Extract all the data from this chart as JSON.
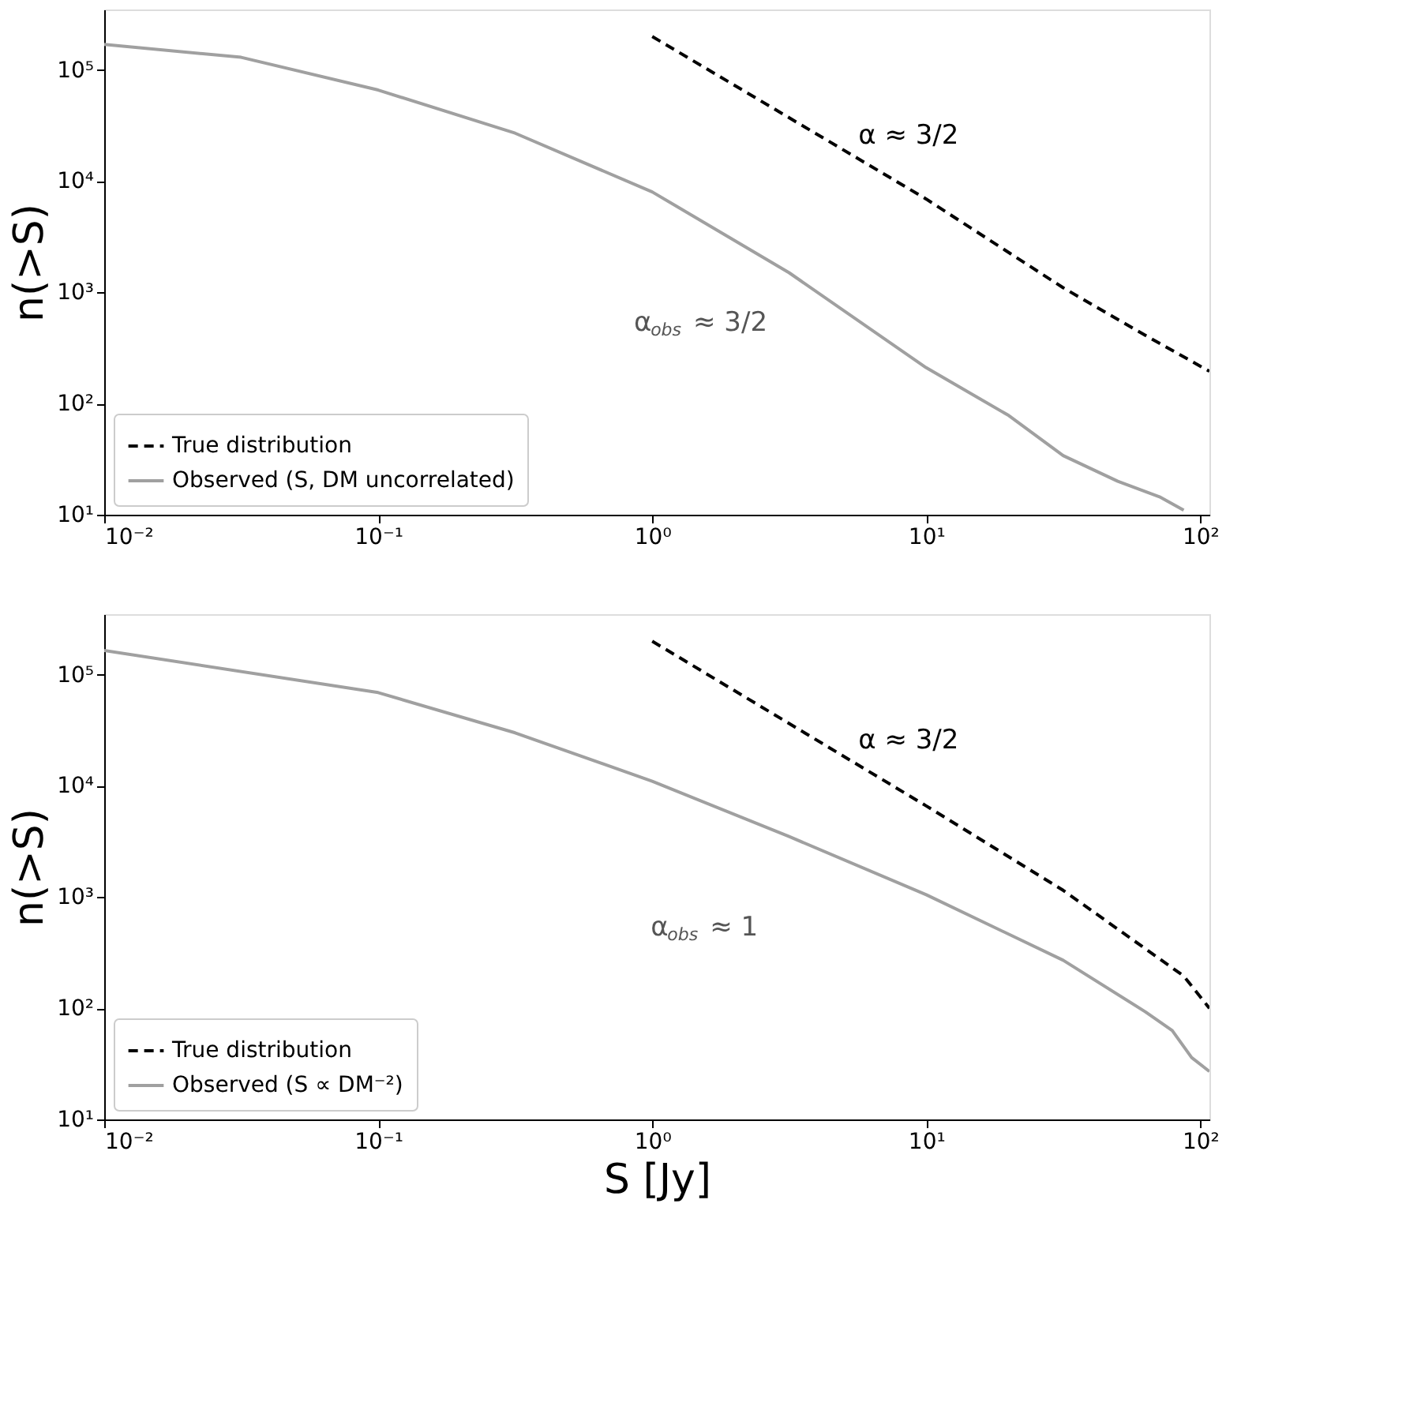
{
  "chart_data": [
    {
      "type": "line",
      "ylabel": "n(>S)",
      "log": "xy",
      "grid": false,
      "legend": "bottom left",
      "xlim": [
        0.01,
        108
      ],
      "ylim": [
        10,
        350000
      ],
      "xticks": [
        {
          "value": 0.01,
          "label": "10⁻²"
        },
        {
          "value": 0.1,
          "label": "10⁻¹"
        },
        {
          "value": 1,
          "label": "10⁰"
        },
        {
          "value": 10,
          "label": "10¹"
        },
        {
          "value": 100,
          "label": "10²"
        }
      ],
      "yticks": [
        {
          "value": 10,
          "label": "10¹"
        },
        {
          "value": 100,
          "label": "10²"
        },
        {
          "value": 1000,
          "label": "10³"
        },
        {
          "value": 10000,
          "label": "10⁴"
        },
        {
          "value": 100000,
          "label": "10⁵"
        }
      ],
      "series": [
        {
          "name": "True distribution",
          "color": "#000000",
          "line_style": "dashed",
          "x": [
            1,
            10,
            31.6,
            59,
            108
          ],
          "values": [
            200000,
            6900,
            1100,
            450,
            195
          ]
        },
        {
          "name": "Observed (S, DM uncorrelated)",
          "color": "#a0a0a0",
          "line_style": "solid",
          "x": [
            0.01,
            0.0316,
            0.1,
            0.316,
            1,
            3.16,
            10,
            20,
            31.6,
            50,
            71,
            87
          ],
          "values": [
            170000,
            130000,
            66000,
            27000,
            8000,
            1500,
            210,
            78,
            34,
            20,
            14.5,
            11
          ]
        }
      ],
      "annotations": [
        "α ≈ 3/2",
        "α$_{obs}$ ≈ 3/2"
      ]
    },
    {
      "type": "line",
      "xlabel": "S [Jy]",
      "ylabel": "n(>S)",
      "log": "xy",
      "grid": false,
      "legend": "bottom left",
      "xlim": [
        0.01,
        108
      ],
      "ylim": [
        10,
        350000
      ],
      "xticks": [
        {
          "value": 0.01,
          "label": "10⁻²"
        },
        {
          "value": 0.1,
          "label": "10⁻¹"
        },
        {
          "value": 1,
          "label": "10⁰"
        },
        {
          "value": 10,
          "label": "10¹"
        },
        {
          "value": 100,
          "label": "10²"
        }
      ],
      "yticks": [
        {
          "value": 10,
          "label": "10¹"
        },
        {
          "value": 100,
          "label": "10²"
        },
        {
          "value": 1000,
          "label": "10³"
        },
        {
          "value": 10000,
          "label": "10⁴"
        },
        {
          "value": 100000,
          "label": "10⁵"
        }
      ],
      "series": [
        {
          "name": "True distribution",
          "color": "#000000",
          "line_style": "dashed",
          "x": [
            1,
            10,
            31.6,
            87,
            108
          ],
          "values": [
            200000,
            6600,
            1150,
            195,
            100
          ]
        },
        {
          "name": "Observed (S ∝ DM⁻²)",
          "color": "#a0a0a0",
          "line_style": "solid",
          "x": [
            0.01,
            0.1,
            0.316,
            1,
            3.16,
            10,
            31.6,
            63,
            79,
            93,
            108
          ],
          "values": [
            165000,
            69000,
            30000,
            11000,
            3500,
            1050,
            270,
            93,
            63,
            36,
            27
          ]
        }
      ],
      "annotations": [
        "α ≈ 3/2",
        "α$_{obs}$ ≈ 1"
      ]
    }
  ]
}
